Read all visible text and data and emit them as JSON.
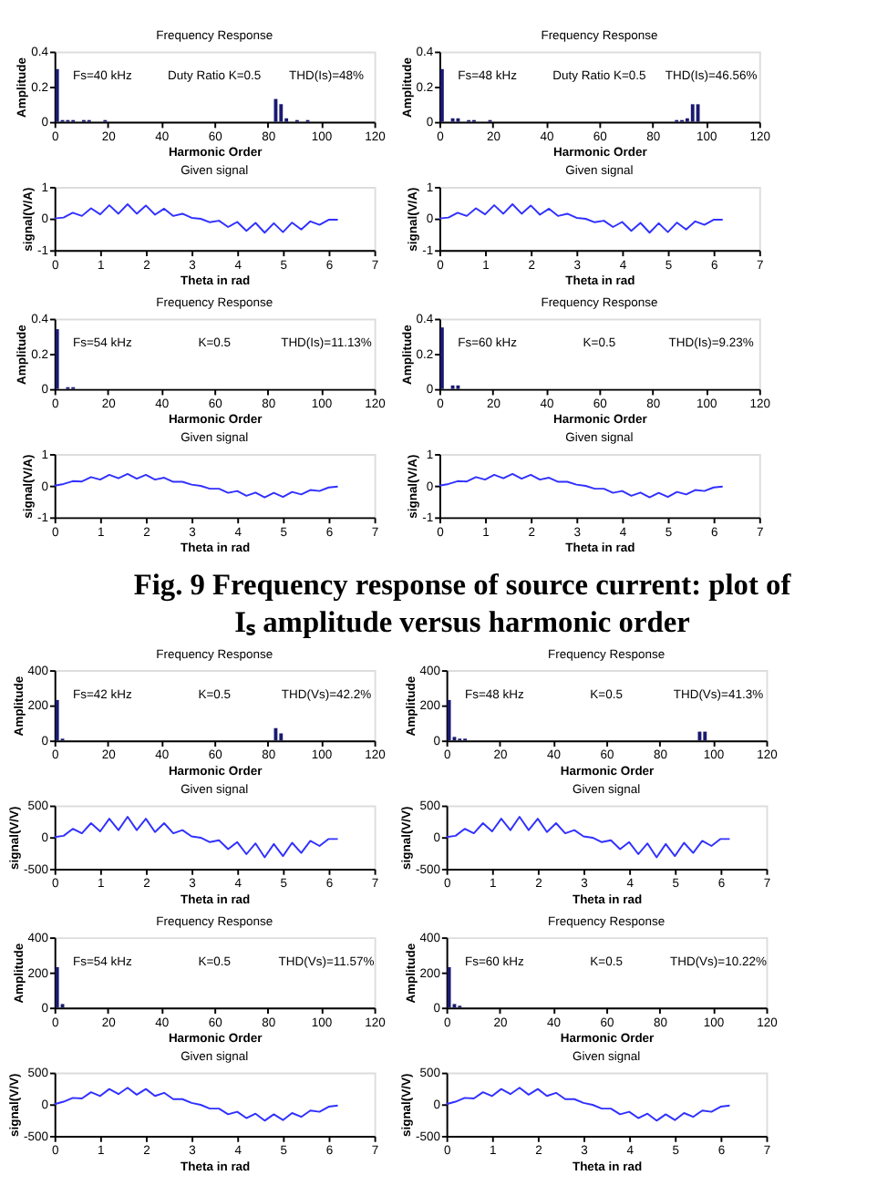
{
  "chart_data": [
    {
      "type": "bar",
      "title": "Frequency Response",
      "xlabel": "Harmonic Order",
      "ylabel": "Amplitude",
      "color": "#1a1a70",
      "xlim": [
        0,
        120
      ],
      "xticks": [
        0,
        20,
        40,
        60,
        80,
        100,
        120
      ],
      "ylim": [
        0,
        0.4
      ],
      "yticks": [
        0,
        0.2,
        0.4
      ],
      "annotations": [
        "Fs=40 kHz",
        "Duty Ratio K=0.5",
        "THD(Is)=48%"
      ],
      "x": [
        1,
        3,
        5,
        7,
        11,
        13,
        19,
        83,
        85,
        87,
        91,
        95
      ],
      "values": [
        0.3,
        0.01,
        0.01,
        0.01,
        0.01,
        0.01,
        0.01,
        0.13,
        0.1,
        0.02,
        0.01,
        0.01
      ]
    },
    {
      "type": "line",
      "title": "Given signal",
      "xlabel": "Theta in rad",
      "ylabel": "signal(V/A)",
      "color": "#3030ff",
      "xlim": [
        0,
        7
      ],
      "xticks": [
        0,
        1,
        2,
        3,
        4,
        5,
        6,
        7
      ],
      "ylim": [
        -1,
        1
      ],
      "yticks": [
        -1,
        0,
        1
      ],
      "x": [
        0,
        0.2,
        0.4,
        0.6,
        0.8,
        1.0,
        1.2,
        1.4,
        1.6,
        1.8,
        2.0,
        2.2,
        2.4,
        2.6,
        2.8,
        3.0,
        3.2,
        3.4,
        3.6,
        3.8,
        4.0,
        4.2,
        4.4,
        4.6,
        4.8,
        5.0,
        5.2,
        5.4,
        5.6,
        5.8,
        6.0,
        6.2
      ],
      "values": [
        0,
        0.03,
        0.18,
        0.08,
        0.32,
        0.13,
        0.42,
        0.15,
        0.45,
        0.15,
        0.41,
        0.12,
        0.31,
        0.08,
        0.15,
        0.02,
        -0.01,
        -0.12,
        -0.07,
        -0.27,
        -0.11,
        -0.39,
        -0.14,
        -0.45,
        -0.15,
        -0.43,
        -0.13,
        -0.35,
        -0.09,
        -0.2,
        -0.04,
        -0.04
      ]
    },
    {
      "type": "bar",
      "title": "Frequency Response",
      "xlabel": "Harmonic Order",
      "ylabel": "Amplitude",
      "color": "#1a1a70",
      "xlim": [
        0,
        120
      ],
      "xticks": [
        0,
        20,
        40,
        60,
        80,
        100,
        120
      ],
      "ylim": [
        0,
        0.4
      ],
      "yticks": [
        0,
        0.2,
        0.4
      ],
      "annotations": [
        "Fs=48 kHz",
        "Duty Ratio K=0.5",
        "THD(Is)=46.56%"
      ],
      "x": [
        1,
        5,
        7,
        11,
        13,
        19,
        89,
        91,
        93,
        95,
        97
      ],
      "values": [
        0.3,
        0.02,
        0.02,
        0.01,
        0.01,
        0.01,
        0.01,
        0.01,
        0.02,
        0.1,
        0.1
      ]
    },
    {
      "type": "line",
      "title": "Given signal",
      "xlabel": "Theta in rad",
      "ylabel": "signal(V/A)",
      "color": "#3030ff",
      "xlim": [
        0,
        7
      ],
      "xticks": [
        0,
        1,
        2,
        3,
        4,
        5,
        6,
        7
      ],
      "ylim": [
        -1,
        1
      ],
      "yticks": [
        -1,
        0,
        1
      ],
      "x": [
        0,
        0.2,
        0.4,
        0.6,
        0.8,
        1.0,
        1.2,
        1.4,
        1.6,
        1.8,
        2.0,
        2.2,
        2.4,
        2.6,
        2.8,
        3.0,
        3.2,
        3.4,
        3.6,
        3.8,
        4.0,
        4.2,
        4.4,
        4.6,
        4.8,
        5.0,
        5.2,
        5.4,
        5.6,
        5.8,
        6.0,
        6.2
      ],
      "values": [
        0,
        0.03,
        0.18,
        0.08,
        0.32,
        0.13,
        0.42,
        0.15,
        0.45,
        0.15,
        0.41,
        0.12,
        0.31,
        0.08,
        0.15,
        0.02,
        -0.01,
        -0.12,
        -0.07,
        -0.27,
        -0.11,
        -0.39,
        -0.14,
        -0.45,
        -0.15,
        -0.43,
        -0.13,
        -0.35,
        -0.09,
        -0.2,
        -0.04,
        -0.04
      ]
    },
    {
      "type": "bar",
      "title": "Frequency Response",
      "xlabel": "Harmonic Order",
      "ylabel": "Amplitude",
      "color": "#1a1a70",
      "xlim": [
        0,
        120
      ],
      "xticks": [
        0,
        20,
        40,
        60,
        80,
        100,
        120
      ],
      "ylim": [
        0,
        0.4
      ],
      "yticks": [
        0,
        0.2,
        0.4
      ],
      "annotations": [
        "Fs=54 kHz",
        "K=0.5",
        "THD(Is)=11.13%"
      ],
      "x": [
        1,
        5,
        7
      ],
      "values": [
        0.34,
        0.01,
        0.01
      ]
    },
    {
      "type": "line",
      "title": "Given signal",
      "xlabel": "Theta in rad",
      "ylabel": "signal(V/A)",
      "color": "#3030ff",
      "xlim": [
        0,
        7
      ],
      "xticks": [
        0,
        1,
        2,
        3,
        4,
        5,
        6,
        7
      ],
      "ylim": [
        -1,
        1
      ],
      "yticks": [
        -1,
        0,
        1
      ],
      "x": [
        0,
        0.2,
        0.4,
        0.6,
        0.8,
        1.0,
        1.2,
        1.4,
        1.6,
        1.8,
        2.0,
        2.2,
        2.4,
        2.6,
        2.8,
        3.0,
        3.2,
        3.4,
        3.6,
        3.8,
        4.0,
        4.2,
        4.4,
        4.6,
        4.8,
        5.0,
        5.2,
        5.4,
        5.6,
        5.8,
        6.0,
        6.2
      ],
      "values": [
        0,
        0.05,
        0.14,
        0.13,
        0.27,
        0.19,
        0.34,
        0.23,
        0.37,
        0.22,
        0.34,
        0.19,
        0.25,
        0.12,
        0.12,
        0.03,
        -0.01,
        -0.1,
        -0.1,
        -0.23,
        -0.17,
        -0.32,
        -0.22,
        -0.37,
        -0.23,
        -0.36,
        -0.2,
        -0.28,
        -0.14,
        -0.17,
        -0.06,
        -0.03
      ]
    },
    {
      "type": "bar",
      "title": "Frequency Response",
      "xlabel": "Harmonic Order",
      "ylabel": "Amplitude",
      "color": "#1a1a70",
      "xlim": [
        0,
        120
      ],
      "xticks": [
        0,
        20,
        40,
        60,
        80,
        100,
        120
      ],
      "ylim": [
        0,
        0.4
      ],
      "yticks": [
        0,
        0.2,
        0.4
      ],
      "annotations": [
        "Fs=60 kHz",
        "K=0.5",
        "THD(Is)=9.23%"
      ],
      "x": [
        1,
        5,
        7
      ],
      "values": [
        0.35,
        0.02,
        0.02
      ]
    },
    {
      "type": "line",
      "title": "Given signal",
      "xlabel": "Theta in rad",
      "ylabel": "signal(V/A)",
      "color": "#3030ff",
      "xlim": [
        0,
        7
      ],
      "xticks": [
        0,
        1,
        2,
        3,
        4,
        5,
        6,
        7
      ],
      "ylim": [
        -1,
        1
      ],
      "yticks": [
        -1,
        0,
        1
      ],
      "x": [
        0,
        0.2,
        0.4,
        0.6,
        0.8,
        1.0,
        1.2,
        1.4,
        1.6,
        1.8,
        2.0,
        2.2,
        2.4,
        2.6,
        2.8,
        3.0,
        3.2,
        3.4,
        3.6,
        3.8,
        4.0,
        4.2,
        4.4,
        4.6,
        4.8,
        5.0,
        5.2,
        5.4,
        5.6,
        5.8,
        6.0,
        6.2
      ],
      "values": [
        0,
        0.05,
        0.14,
        0.13,
        0.27,
        0.19,
        0.34,
        0.23,
        0.37,
        0.22,
        0.34,
        0.19,
        0.25,
        0.12,
        0.12,
        0.03,
        -0.01,
        -0.1,
        -0.1,
        -0.23,
        -0.17,
        -0.32,
        -0.22,
        -0.37,
        -0.23,
        -0.36,
        -0.2,
        -0.28,
        -0.14,
        -0.17,
        -0.06,
        -0.03
      ]
    },
    {
      "type": "other",
      "title": "Fig. 9 Frequency response of source current: plot of Iₛ amplitude versus harmonic order"
    },
    {
      "type": "bar",
      "title": "Frequency Response",
      "xlabel": "Harmonic Order",
      "ylabel": "Amplitude",
      "color": "#1a1a70",
      "xlim": [
        0,
        120
      ],
      "xticks": [
        0,
        20,
        40,
        60,
        80,
        100,
        120
      ],
      "ylim": [
        0,
        400
      ],
      "yticks": [
        0,
        200,
        400
      ],
      "annotations": [
        "Fs=42 kHz",
        "K=0.5",
        "THD(Vs)=42.2%"
      ],
      "x": [
        1,
        3,
        83,
        85
      ],
      "values": [
        230,
        10,
        70,
        40
      ]
    },
    {
      "type": "line",
      "title": "Given signal",
      "xlabel": "Theta in rad",
      "ylabel": "signal(V/V)",
      "color": "#3030ff",
      "xlim": [
        0,
        7
      ],
      "xticks": [
        0,
        1,
        2,
        3,
        4,
        5,
        6,
        7
      ],
      "ylim": [
        -500,
        500
      ],
      "yticks": [
        -500,
        0,
        500
      ],
      "x": [
        0,
        0.2,
        0.4,
        0.6,
        0.8,
        1.0,
        1.2,
        1.4,
        1.6,
        1.8,
        2.0,
        2.2,
        2.4,
        2.6,
        2.8,
        3.0,
        3.2,
        3.4,
        3.6,
        3.8,
        4.0,
        4.2,
        4.4,
        4.6,
        4.8,
        5.0,
        5.2,
        5.4,
        5.6,
        5.8,
        6.0,
        6.2
      ],
      "values": [
        0,
        20,
        130,
        60,
        220,
        90,
        290,
        110,
        320,
        110,
        290,
        80,
        220,
        60,
        110,
        10,
        -10,
        -80,
        -50,
        -190,
        -80,
        -270,
        -100,
        -320,
        -110,
        -300,
        -90,
        -250,
        -60,
        -140,
        -30,
        -30
      ]
    },
    {
      "type": "bar",
      "title": "Frequency Response",
      "xlabel": "Harmonic Order",
      "ylabel": "Amplitude",
      "color": "#1a1a70",
      "xlim": [
        0,
        120
      ],
      "xticks": [
        0,
        20,
        40,
        60,
        80,
        100,
        120
      ],
      "ylim": [
        0,
        400
      ],
      "yticks": [
        0,
        200,
        400
      ],
      "annotations": [
        "Fs=48 kHz",
        "K=0.5",
        "THD(Vs)=41.3%"
      ],
      "x": [
        1,
        3,
        5,
        7,
        95,
        97
      ],
      "values": [
        230,
        20,
        10,
        10,
        50,
        50
      ]
    },
    {
      "type": "line",
      "title": "Given signal",
      "xlabel": "Theta in rad",
      "ylabel": "signal(V/V)",
      "color": "#3030ff",
      "xlim": [
        0,
        7
      ],
      "xticks": [
        0,
        1,
        2,
        3,
        4,
        5,
        6,
        7
      ],
      "ylim": [
        -500,
        500
      ],
      "yticks": [
        -500,
        0,
        500
      ],
      "x": [
        0,
        0.2,
        0.4,
        0.6,
        0.8,
        1.0,
        1.2,
        1.4,
        1.6,
        1.8,
        2.0,
        2.2,
        2.4,
        2.6,
        2.8,
        3.0,
        3.2,
        3.4,
        3.6,
        3.8,
        4.0,
        4.2,
        4.4,
        4.6,
        4.8,
        5.0,
        5.2,
        5.4,
        5.6,
        5.8,
        6.0,
        6.2
      ],
      "values": [
        0,
        20,
        130,
        60,
        220,
        90,
        290,
        110,
        320,
        110,
        290,
        80,
        220,
        60,
        110,
        10,
        -10,
        -80,
        -50,
        -190,
        -80,
        -270,
        -100,
        -320,
        -110,
        -300,
        -90,
        -250,
        -60,
        -140,
        -30,
        -30
      ]
    },
    {
      "type": "bar",
      "title": "Frequency Response",
      "xlabel": "Harmonic Order",
      "ylabel": "Amplitude",
      "color": "#1a1a70",
      "xlim": [
        0,
        120
      ],
      "xticks": [
        0,
        20,
        40,
        60,
        80,
        100,
        120
      ],
      "ylim": [
        0,
        400
      ],
      "yticks": [
        0,
        200,
        400
      ],
      "annotations": [
        "Fs=54 kHz",
        "K=0.5",
        "THD(Vs)=11.57%"
      ],
      "x": [
        1,
        3
      ],
      "values": [
        230,
        20
      ]
    },
    {
      "type": "line",
      "title": "Given signal",
      "xlabel": "Theta in rad",
      "ylabel": "signal(V/V)",
      "color": "#3030ff",
      "xlim": [
        0,
        7
      ],
      "xticks": [
        0,
        1,
        2,
        3,
        4,
        5,
        6,
        7
      ],
      "ylim": [
        -500,
        500
      ],
      "yticks": [
        -500,
        0,
        500
      ],
      "x": [
        0,
        0.2,
        0.4,
        0.6,
        0.8,
        1.0,
        1.2,
        1.4,
        1.6,
        1.8,
        2.0,
        2.2,
        2.4,
        2.6,
        2.8,
        3.0,
        3.2,
        3.4,
        3.6,
        3.8,
        4.0,
        4.2,
        4.4,
        4.6,
        4.8,
        5.0,
        5.2,
        5.4,
        5.6,
        5.8,
        6.0,
        6.2
      ],
      "values": [
        0,
        40,
        100,
        90,
        190,
        130,
        240,
        160,
        260,
        150,
        240,
        130,
        180,
        80,
        80,
        20,
        -10,
        -70,
        -70,
        -160,
        -120,
        -220,
        -150,
        -260,
        -160,
        -250,
        -140,
        -200,
        -100,
        -120,
        -40,
        -20
      ]
    },
    {
      "type": "bar",
      "title": "Frequency Response",
      "xlabel": "Harmonic Order",
      "ylabel": "Amplitude",
      "color": "#1a1a70",
      "xlim": [
        0,
        120
      ],
      "xticks": [
        0,
        20,
        40,
        60,
        80,
        100,
        120
      ],
      "ylim": [
        0,
        400
      ],
      "yticks": [
        0,
        200,
        400
      ],
      "annotations": [
        "Fs=60 kHz",
        "K=0.5",
        "THD(Vs)=10.22%"
      ],
      "x": [
        1,
        3,
        5
      ],
      "values": [
        230,
        20,
        10
      ]
    },
    {
      "type": "line",
      "title": "Given signal",
      "xlabel": "Theta in rad",
      "ylabel": "signal(V/V)",
      "color": "#3030ff",
      "xlim": [
        0,
        7
      ],
      "xticks": [
        0,
        1,
        2,
        3,
        4,
        5,
        6,
        7
      ],
      "ylim": [
        -500,
        500
      ],
      "yticks": [
        -500,
        0,
        500
      ],
      "x": [
        0,
        0.2,
        0.4,
        0.6,
        0.8,
        1.0,
        1.2,
        1.4,
        1.6,
        1.8,
        2.0,
        2.2,
        2.4,
        2.6,
        2.8,
        3.0,
        3.2,
        3.4,
        3.6,
        3.8,
        4.0,
        4.2,
        4.4,
        4.6,
        4.8,
        5.0,
        5.2,
        5.4,
        5.6,
        5.8,
        6.0,
        6.2
      ],
      "values": [
        0,
        40,
        100,
        90,
        190,
        130,
        240,
        160,
        260,
        150,
        240,
        130,
        180,
        80,
        80,
        20,
        -10,
        -70,
        -70,
        -160,
        -120,
        -220,
        -150,
        -260,
        -160,
        -250,
        -140,
        -200,
        -100,
        -120,
        -40,
        -20
      ]
    }
  ]
}
